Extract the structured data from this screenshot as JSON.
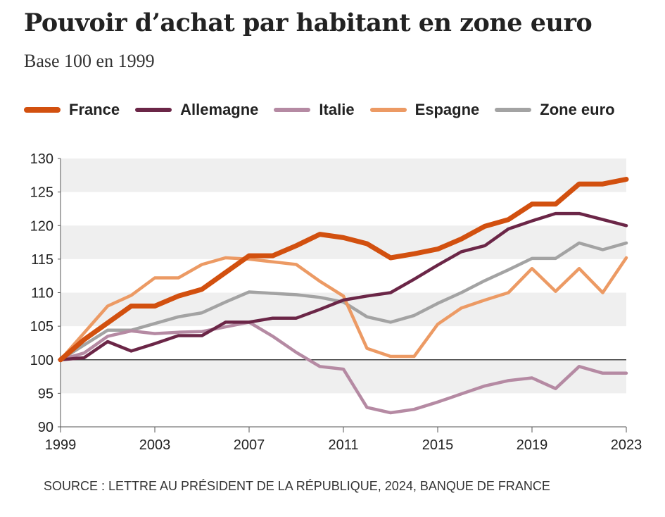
{
  "title": "Pouvoir d’achat par habitant en zone euro",
  "subtitle": "Base 100 en 1999",
  "source": "SOURCE : LETTRE AU PRÉSIDENT DE LA RÉPUBLIQUE, 2024, BANQUE DE FRANCE",
  "chart_data": {
    "type": "line",
    "title": "Pouvoir d’achat par habitant en zone euro",
    "subtitle": "Base 100 en 1999",
    "x": [
      1999,
      2000,
      2001,
      2002,
      2003,
      2004,
      2005,
      2006,
      2007,
      2008,
      2009,
      2010,
      2011,
      2012,
      2013,
      2014,
      2015,
      2016,
      2017,
      2018,
      2019,
      2020,
      2021,
      2022,
      2023
    ],
    "xticks": [
      "1999",
      "2003",
      "2007",
      "2011",
      "2015",
      "2019",
      "2023"
    ],
    "yticks": [
      "90",
      "95",
      "100",
      "105",
      "110",
      "115",
      "120",
      "125",
      "130"
    ],
    "ylim": [
      90,
      130
    ],
    "xlim": [
      1999,
      2023
    ],
    "legend_position": "top",
    "series": [
      {
        "name": "France",
        "color": "#d2500f",
        "width": 7,
        "values": [
          100,
          103,
          105.5,
          108,
          108,
          109.5,
          110.5,
          113,
          115.5,
          115.5,
          117,
          118.7,
          118.2,
          117.3,
          115.2,
          115.8,
          116.5,
          118,
          119.9,
          120.9,
          123.2,
          123.2,
          126.2,
          126.2,
          126.9
        ]
      },
      {
        "name": "Allemagne",
        "color": "#6b2647",
        "width": 4.5,
        "values": [
          100,
          100.3,
          102.7,
          101.3,
          102.4,
          103.6,
          103.6,
          105.6,
          105.6,
          106.2,
          106.2,
          107.5,
          108.9,
          109.5,
          110,
          112,
          114.1,
          116.1,
          117,
          119.5,
          120.7,
          121.8,
          121.8,
          120.9,
          120
        ]
      },
      {
        "name": "Italie",
        "color": "#b58aa3",
        "width": 4.5,
        "values": [
          100,
          101,
          103.5,
          104.3,
          103.9,
          104.1,
          104.2,
          104.9,
          105.6,
          103.5,
          101.1,
          99,
          98.6,
          92.9,
          92.1,
          92.6,
          93.7,
          94.9,
          96.1,
          96.9,
          97.3,
          95.7,
          99,
          98,
          98
        ]
      },
      {
        "name": "Espagne",
        "color": "#ec9a64",
        "width": 4.5,
        "values": [
          100,
          104,
          108,
          109.6,
          112.2,
          112.2,
          114.2,
          115.2,
          115,
          114.6,
          114.2,
          111.7,
          109.5,
          101.7,
          100.5,
          100.5,
          105.3,
          107.7,
          108.9,
          110,
          113.6,
          110.2,
          113.6,
          110,
          115.2
        ]
      },
      {
        "name": "Zone euro",
        "color": "#a3a3a3",
        "width": 4.5,
        "values": [
          100,
          102.2,
          104.4,
          104.4,
          105.4,
          106.4,
          107,
          108.6,
          110.1,
          109.9,
          109.7,
          109.3,
          108.6,
          106.4,
          105.6,
          106.6,
          108.4,
          110,
          111.8,
          113.4,
          115.1,
          115.1,
          117.4,
          116.4,
          117.4
        ]
      }
    ]
  }
}
